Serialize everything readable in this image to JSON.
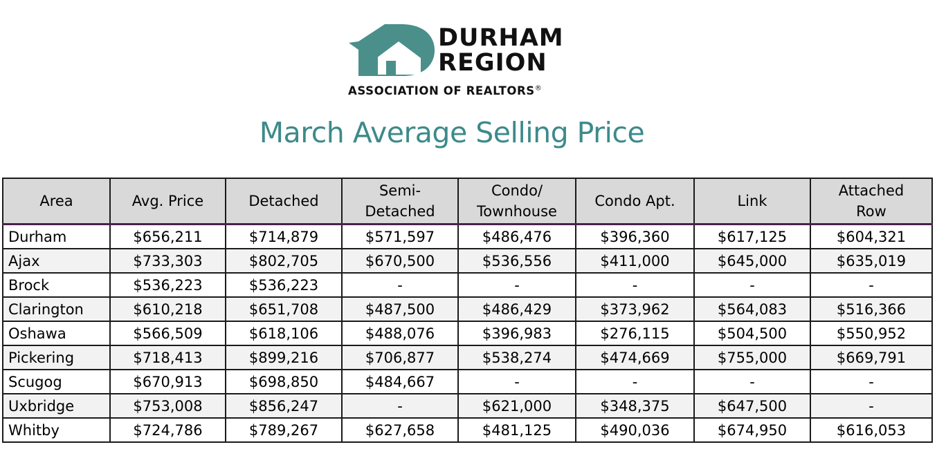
{
  "logo": {
    "line1": "DURHAM",
    "line2": "REGION",
    "tagline": "ASSOCIATION OF REALTORS",
    "reg_mark": "®",
    "color": "#4a8f8a"
  },
  "title": "March Average Selling Price",
  "table": {
    "headers": [
      "Area",
      "Avg. Price",
      "Detached",
      "Semi-\nDetached",
      "Condo/\nTownhouse",
      "Condo Apt.",
      "Link",
      "Attached\nRow"
    ],
    "rows": [
      [
        "Durham",
        "$656,211",
        "$714,879",
        "$571,597",
        "$486,476",
        "$396,360",
        "$617,125",
        "$604,321"
      ],
      [
        "Ajax",
        "$733,303",
        "$802,705",
        "$670,500",
        "$536,556",
        "$411,000",
        "$645,000",
        "$635,019"
      ],
      [
        "Brock",
        "$536,223",
        "$536,223",
        "-",
        "-",
        "-",
        "-",
        "-"
      ],
      [
        "Clarington",
        "$610,218",
        "$651,708",
        "$487,500",
        "$486,429",
        "$373,962",
        "$564,083",
        "$516,366"
      ],
      [
        "Oshawa",
        "$566,509",
        "$618,106",
        "$488,076",
        "$396,983",
        "$276,115",
        "$504,500",
        "$550,952"
      ],
      [
        "Pickering",
        "$718,413",
        "$899,216",
        "$706,877",
        "$538,274",
        "$474,669",
        "$755,000",
        "$669,791"
      ],
      [
        "Scugog",
        "$670,913",
        "$698,850",
        "$484,667",
        "-",
        "-",
        "-",
        "-"
      ],
      [
        "Uxbridge",
        "$753,008",
        "$856,247",
        "-",
        "$621,000",
        "$348,375",
        "$647,500",
        "-"
      ],
      [
        "Whitby",
        "$724,786",
        "$789,267",
        "$627,658",
        "$481,125",
        "$490,036",
        "$674,950",
        "$616,053"
      ]
    ]
  },
  "colors": {
    "title": "#3d8a8a",
    "header_bg": "#d9d9d9",
    "header_rule": "#4a1f4f",
    "stripe": "#f2f2f2"
  }
}
